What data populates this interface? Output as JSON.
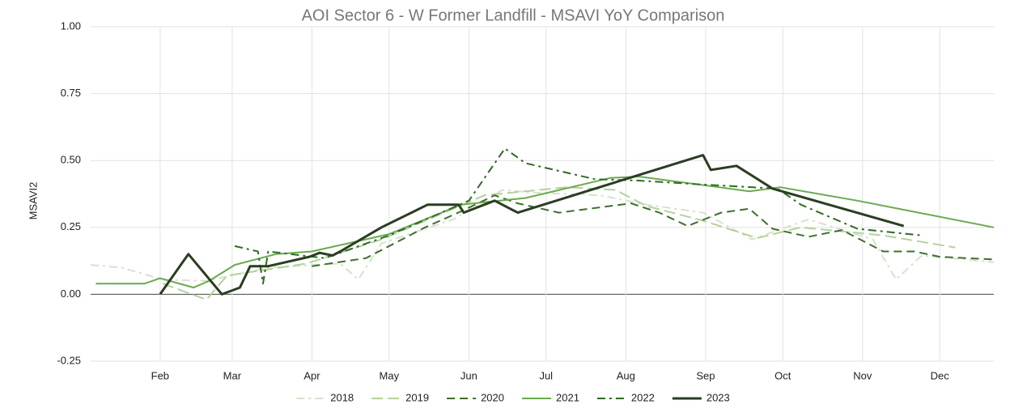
{
  "chart_data": {
    "type": "line",
    "title": "AOI Sector 6 - W Former Landfill - MSAVI YoY Comparison",
    "y_label": "MSAVI2",
    "xlim": [
      5,
      356
    ],
    "xticks": [
      {
        "value": 32,
        "label": "Feb"
      },
      {
        "value": 60,
        "label": "Mar"
      },
      {
        "value": 91,
        "label": "Apr"
      },
      {
        "value": 121,
        "label": "May"
      },
      {
        "value": 152,
        "label": "Jun"
      },
      {
        "value": 182,
        "label": "Jul"
      },
      {
        "value": 213,
        "label": "Aug"
      },
      {
        "value": 244,
        "label": "Sep"
      },
      {
        "value": 274,
        "label": "Oct"
      },
      {
        "value": 305,
        "label": "Nov"
      },
      {
        "value": 335,
        "label": "Dec"
      }
    ],
    "ylim": [
      -0.25,
      1.0
    ],
    "yticks": [
      {
        "value": -0.25,
        "label": "-0.25"
      },
      {
        "value": 0,
        "label": "0.00"
      },
      {
        "value": 0.25,
        "label": "0.25"
      },
      {
        "value": 0.5,
        "label": "0.50"
      },
      {
        "value": 0.75,
        "label": "0.75"
      },
      {
        "value": 1,
        "label": "1.00"
      }
    ],
    "grid": true,
    "legend": "bottom",
    "series": [
      {
        "name": "2018",
        "color": "#d5e2cc",
        "dash": "dash-dot",
        "line_width": 2,
        "x": [
          5,
          17,
          33,
          50,
          74,
          102,
          109,
          118,
          146,
          165,
          177,
          203,
          221,
          243,
          262,
          284,
          309,
          318,
          328,
          356
        ],
        "values": [
          0.11,
          0.1,
          0.055,
          0.05,
          0.1,
          0.115,
          0.055,
          0.19,
          0.28,
          0.39,
          0.38,
          0.37,
          0.335,
          0.305,
          0.205,
          0.28,
          0.205,
          0.055,
          0.145,
          0.12
        ]
      },
      {
        "name": "2019",
        "color": "#b5d19b",
        "dash": "long-dash",
        "line_width": 2,
        "x": [
          33,
          50,
          58,
          89,
          118,
          146,
          158,
          190,
          209,
          221,
          243,
          264,
          281,
          313,
          341
        ],
        "values": [
          0.04,
          -0.02,
          0.07,
          0.115,
          0.205,
          0.32,
          0.37,
          0.4,
          0.39,
          0.33,
          0.275,
          0.21,
          0.25,
          0.22,
          0.175
        ]
      },
      {
        "name": "2020",
        "color": "#3d6f2b",
        "dash": "dash",
        "line_width": 2,
        "x": [
          91,
          112,
          135,
          149,
          162,
          171,
          187,
          215,
          226,
          237,
          250,
          261,
          270,
          284,
          297,
          313,
          325,
          335,
          356
        ],
        "values": [
          0.105,
          0.135,
          0.25,
          0.31,
          0.37,
          0.34,
          0.305,
          0.34,
          0.305,
          0.255,
          0.305,
          0.32,
          0.245,
          0.215,
          0.24,
          0.16,
          0.16,
          0.14,
          0.13
        ]
      },
      {
        "name": "2021",
        "color": "#6aaa4f",
        "dash": "solid",
        "line_width": 2,
        "x": [
          7,
          26,
          32,
          45,
          51,
          61,
          77,
          91,
          121,
          149,
          174,
          207,
          218,
          261,
          273,
          303,
          356
        ],
        "values": [
          0.04,
          0.04,
          0.06,
          0.025,
          0.05,
          0.11,
          0.15,
          0.16,
          0.225,
          0.335,
          0.36,
          0.435,
          0.44,
          0.385,
          0.4,
          0.35,
          0.25
        ]
      },
      {
        "name": "2022",
        "color": "#2f6b24",
        "dash": "dash-dot",
        "line_width": 2,
        "x": [
          61,
          70,
          72,
          74,
          96,
          121,
          152,
          166,
          174,
          201,
          218,
          243,
          272,
          281,
          303,
          328
        ],
        "values": [
          0.18,
          0.16,
          0.04,
          0.16,
          0.135,
          0.22,
          0.35,
          0.545,
          0.49,
          0.43,
          0.425,
          0.41,
          0.395,
          0.335,
          0.245,
          0.22
        ]
      },
      {
        "name": "2023",
        "color": "#2a3d22",
        "dash": "solid",
        "line_width": 3,
        "x": [
          32,
          43,
          56,
          63,
          67,
          74,
          90,
          94,
          99,
          102,
          118,
          136,
          148,
          150,
          162,
          171,
          201,
          243,
          246,
          256,
          270,
          321
        ],
        "values": [
          0,
          0.15,
          0,
          0.025,
          0.105,
          0.105,
          0.14,
          0.155,
          0.145,
          0.16,
          0.25,
          0.335,
          0.335,
          0.305,
          0.35,
          0.305,
          0.395,
          0.52,
          0.465,
          0.48,
          0.395,
          0.255
        ]
      }
    ]
  }
}
